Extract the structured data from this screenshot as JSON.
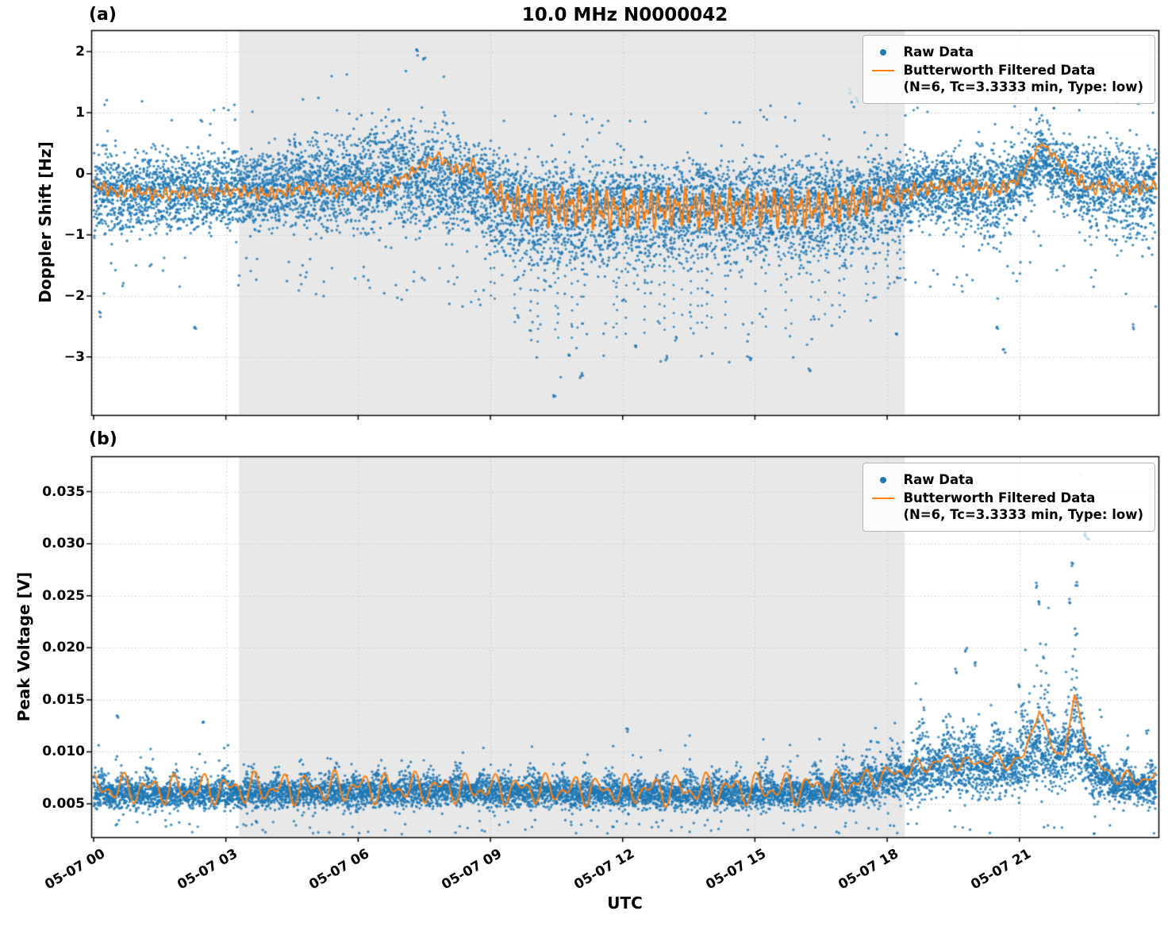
{
  "figure": {
    "title": "10.0 MHz N0000042",
    "xlabel": "UTC",
    "panel_a_label": "(a)",
    "panel_b_label": "(b)"
  },
  "legend": {
    "raw_label": "Raw Data",
    "filtered_label_line1": "Butterworth Filtered Data",
    "filtered_label_line2": "(N=6, Tc=3.3333 min, Type: low)"
  },
  "colors": {
    "raw": "#1f77b4",
    "raw_faint": "#b9d7ea",
    "filtered": "#ff7f0e",
    "shading": "#e8e8e8",
    "grid": "#c9c9c9",
    "spine": "#000000"
  },
  "xaxis": {
    "label": "UTC",
    "range_hours": [
      0,
      24.1
    ],
    "tick_hours": [
      0,
      3,
      6,
      9,
      12,
      15,
      18,
      21
    ],
    "tick_labels": [
      "05-07 00",
      "05-07 03",
      "05-07 06",
      "05-07 09",
      "05-07 12",
      "05-07 15",
      "05-07 18",
      "05-07 21"
    ]
  },
  "shading_hours": [
    3.3,
    18.4
  ],
  "chart_data": [
    {
      "type": "scatter",
      "panel": "a",
      "title": "10.0 MHz N0000042",
      "ylabel": "Doppler Shift [Hz]",
      "ylim": [
        -3.95,
        2.35
      ],
      "yticks": [
        2,
        1,
        0,
        -1,
        -2,
        -3
      ],
      "grid": true,
      "legend_position": "upper right",
      "series": [
        {
          "name": "Raw Data",
          "kind": "scatter-envelope",
          "seed": 1337,
          "t": [
            0,
            1,
            2,
            3,
            4,
            5,
            6,
            7,
            8,
            8.7,
            9.3,
            10,
            11,
            12,
            13,
            14,
            15,
            16,
            17,
            17.6,
            18.4,
            19,
            20,
            20.6,
            21,
            21.5,
            22,
            22.4,
            23,
            23.6,
            24.1
          ],
          "center": [
            -0.25,
            -0.28,
            -0.25,
            -0.25,
            -0.25,
            -0.18,
            -0.12,
            -0.05,
            -0.1,
            -0.2,
            -0.45,
            -0.6,
            -0.6,
            -0.6,
            -0.58,
            -0.55,
            -0.55,
            -0.55,
            -0.5,
            -0.45,
            -0.3,
            -0.25,
            -0.25,
            -0.3,
            -0.1,
            0.3,
            0.0,
            -0.15,
            -0.2,
            -0.25,
            -0.3
          ],
          "spread_up": [
            1.15,
            1.05,
            1.0,
            1.0,
            1.05,
            1.25,
            1.35,
            1.55,
            1.4,
            1.2,
            1.1,
            1.15,
            1.2,
            1.2,
            1.15,
            1.2,
            1.25,
            1.3,
            1.2,
            1.15,
            1.0,
            0.95,
            1.0,
            1.0,
            1.1,
            1.15,
            1.0,
            1.0,
            1.1,
            1.15,
            1.05
          ],
          "spread_down": [
            1.15,
            1.05,
            1.05,
            1.0,
            1.0,
            1.15,
            1.25,
            1.35,
            1.3,
            1.3,
            1.5,
            1.75,
            1.7,
            1.7,
            1.6,
            1.6,
            1.65,
            1.7,
            1.5,
            1.4,
            1.1,
            1.0,
            1.2,
            1.3,
            1.0,
            0.95,
            1.1,
            1.2,
            1.3,
            1.45,
            1.2
          ],
          "streak_hours": [
            9,
            18.4
          ],
          "outliers": [
            [
              0.15,
              -2.3
            ],
            [
              2.3,
              -2.55
            ],
            [
              7.35,
              2.05
            ],
            [
              7.5,
              1.9
            ],
            [
              10.45,
              -3.62
            ],
            [
              10.8,
              -2.95
            ],
            [
              11.05,
              -3.3
            ],
            [
              12.3,
              -2.85
            ],
            [
              13.2,
              -2.7
            ],
            [
              14.9,
              -3.05
            ],
            [
              16.25,
              -3.2
            ],
            [
              18.2,
              -2.6
            ],
            [
              20.5,
              -2.55
            ],
            [
              20.65,
              -2.9
            ],
            [
              23.6,
              -2.5
            ]
          ],
          "faint_outliers": [
            [
              17.15,
              1.35
            ],
            [
              17.3,
              1.2
            ]
          ]
        },
        {
          "name": "Butterworth Filtered Data (N=6, Tc=3.3333 min, Type: low)",
          "kind": "line",
          "t": [
            0,
            0.5,
            1,
            1.5,
            2,
            2.5,
            3,
            3.5,
            4,
            4.5,
            5,
            5.5,
            6,
            6.5,
            7,
            7.4,
            7.8,
            8.2,
            8.6,
            9,
            9.5,
            10,
            11,
            12,
            13,
            14,
            15,
            16,
            17,
            17.5,
            18,
            18.5,
            19,
            19.5,
            20,
            20.5,
            21,
            21.3,
            21.5,
            21.8,
            22.2,
            22.6,
            23,
            23.5,
            24.1
          ],
          "y": [
            -0.18,
            -0.3,
            -0.28,
            -0.35,
            -0.3,
            -0.33,
            -0.27,
            -0.3,
            -0.33,
            -0.27,
            -0.22,
            -0.3,
            -0.2,
            -0.27,
            -0.08,
            0.12,
            0.3,
            0.05,
            0.15,
            -0.25,
            -0.5,
            -0.55,
            -0.55,
            -0.6,
            -0.55,
            -0.58,
            -0.55,
            -0.58,
            -0.52,
            -0.45,
            -0.38,
            -0.3,
            -0.22,
            -0.18,
            -0.2,
            -0.28,
            -0.08,
            0.28,
            0.5,
            0.28,
            0.0,
            -0.25,
            -0.18,
            -0.25,
            -0.2
          ],
          "wiggle_amp": [
            0.1,
            0.11,
            0.11,
            0.11,
            0.11,
            0.11,
            0.11,
            0.11,
            0.11,
            0.11,
            0.11,
            0.11,
            0.11,
            0.11,
            0.1,
            0.08,
            0.08,
            0.1,
            0.12,
            0.16,
            0.3,
            0.33,
            0.35,
            0.35,
            0.34,
            0.34,
            0.33,
            0.34,
            0.3,
            0.26,
            0.2,
            0.15,
            0.12,
            0.12,
            0.12,
            0.13,
            0.1,
            0.07,
            0.05,
            0.08,
            0.12,
            0.12,
            0.12,
            0.12,
            0.12
          ],
          "wiggle_periods_min": [
            12,
            7.6
          ]
        }
      ]
    },
    {
      "type": "scatter",
      "panel": "b",
      "ylabel": "Peak Voltage [V]",
      "ylim": [
        0.0018,
        0.0384
      ],
      "yticks": [
        0.035,
        0.03,
        0.025,
        0.02,
        0.015,
        0.01,
        0.005
      ],
      "ytick_decimals": 3,
      "grid": true,
      "legend_position": "upper right",
      "series": [
        {
          "name": "Raw Data",
          "kind": "scatter-envelope",
          "seed": 777,
          "burst_period_min": 35,
          "t": [
            0,
            2,
            4,
            6,
            8,
            10,
            12,
            14,
            16,
            17,
            18,
            19,
            19.6,
            20.3,
            21,
            21.45,
            21.8,
            22.25,
            22.7,
            23.2,
            24.1
          ],
          "center": [
            0.0062,
            0.006,
            0.0061,
            0.0062,
            0.0063,
            0.0062,
            0.006,
            0.006,
            0.0061,
            0.0066,
            0.0073,
            0.0085,
            0.009,
            0.0085,
            0.009,
            0.011,
            0.0095,
            0.012,
            0.008,
            0.007,
            0.0068
          ],
          "spread_up": [
            0.0035,
            0.0034,
            0.0035,
            0.0036,
            0.0035,
            0.0035,
            0.0034,
            0.0036,
            0.004,
            0.0048,
            0.0058,
            0.0075,
            0.008,
            0.0068,
            0.007,
            0.0125,
            0.008,
            0.0145,
            0.005,
            0.0042,
            0.0036
          ],
          "spread_down": [
            0.0026,
            0.0024,
            0.0025,
            0.0026,
            0.0026,
            0.0025,
            0.0024,
            0.0024,
            0.0025,
            0.003,
            0.0036,
            0.0048,
            0.005,
            0.0044,
            0.0048,
            0.0068,
            0.005,
            0.0075,
            0.004,
            0.0032,
            0.003
          ],
          "outliers": [
            [
              0.55,
              0.0135
            ],
            [
              2.5,
              0.0128
            ],
            [
              12.1,
              0.0122
            ],
            [
              19.8,
              0.0198
            ],
            [
              20.0,
              0.0185
            ],
            [
              19.55,
              0.0178
            ],
            [
              21.0,
              0.0165
            ],
            [
              21.4,
              0.026
            ],
            [
              21.45,
              0.0242
            ],
            [
              22.2,
              0.028
            ],
            [
              22.3,
              0.0262
            ],
            [
              22.15,
              0.0245
            ],
            [
              23.9,
              0.0118
            ]
          ],
          "faint_outliers": [
            [
              22.4,
              0.0365
            ],
            [
              22.45,
              0.0335
            ],
            [
              22.5,
              0.031
            ],
            [
              22.55,
              0.0302
            ]
          ]
        },
        {
          "name": "Butterworth Filtered Data (N=6, Tc=3.3333 min, Type: low)",
          "kind": "line",
          "t": [
            0,
            2,
            4,
            6,
            8,
            10,
            12,
            14,
            16,
            17,
            17.6,
            18.2,
            18.8,
            19.3,
            19.8,
            20.3,
            20.8,
            21.1,
            21.45,
            21.7,
            22.0,
            22.25,
            22.5,
            22.8,
            23.2,
            23.6,
            24.1
          ],
          "y": [
            0.0065,
            0.0064,
            0.0065,
            0.0066,
            0.0065,
            0.0064,
            0.0063,
            0.0064,
            0.0065,
            0.0068,
            0.0074,
            0.008,
            0.0086,
            0.0092,
            0.0088,
            0.0093,
            0.0089,
            0.0095,
            0.0143,
            0.0105,
            0.0098,
            0.0152,
            0.011,
            0.0085,
            0.0076,
            0.0073,
            0.0075
          ],
          "wiggle_amp": [
            0.0016,
            0.0016,
            0.0017,
            0.0017,
            0.0016,
            0.0016,
            0.0016,
            0.0017,
            0.0017,
            0.0015,
            0.0012,
            0.001,
            0.0009,
            0.0008,
            0.0008,
            0.0008,
            0.0008,
            0.0007,
            0.0005,
            0.0007,
            0.0007,
            0.0005,
            0.0007,
            0.0008,
            0.0008,
            0.0008,
            0.0008
          ],
          "wiggle_periods_min": [
            36,
            22
          ]
        }
      ]
    }
  ]
}
